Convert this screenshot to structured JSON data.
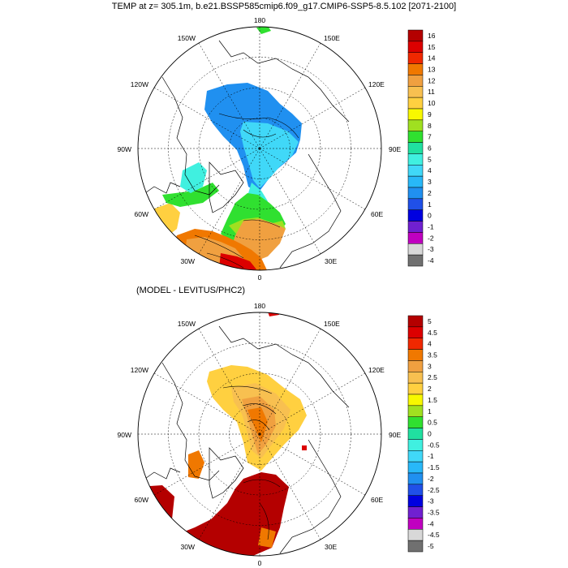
{
  "top_panel": {
    "title": "TEMP at z= 305.1m, b.e21.BSSP585cmip6.f09_g17.CMIP6-SSP5-8.5.102 [2071-2100]",
    "longitude_labels": [
      "180",
      "150E",
      "120E",
      "90E",
      "60E",
      "30E",
      "0",
      "30W",
      "60W",
      "90W",
      "120W",
      "150W"
    ],
    "colorbar_labels": [
      "16",
      "15",
      "14",
      "13",
      "12",
      "11",
      "10",
      "9",
      "8",
      "7",
      "6",
      "5",
      "4",
      "3",
      "2",
      "1",
      "0",
      "-1",
      "-2",
      "-3",
      "-4"
    ],
    "colorbar_colors": [
      "#b40000",
      "#dc0000",
      "#f02800",
      "#f07800",
      "#f0a040",
      "#f8c050",
      "#ffd040",
      "#f8f800",
      "#a0e020",
      "#30e030",
      "#20e0a0",
      "#40f0e0",
      "#40d8f8",
      "#28b8f8",
      "#2090f0",
      "#2050e8",
      "#0000e0",
      "#7020d0",
      "#c000c0",
      "#d8d8d8",
      "#707070"
    ]
  },
  "bottom_panel": {
    "title": "(MODEL - LEVITUS/PHC2)",
    "longitude_labels": [
      "180",
      "150E",
      "120E",
      "90E",
      "60E",
      "30E",
      "0",
      "30W",
      "60W",
      "90W",
      "120W",
      "150W"
    ],
    "colorbar_labels": [
      "5",
      "4.5",
      "4",
      "3.5",
      "3",
      "2.5",
      "2",
      "1.5",
      "1",
      "0.5",
      "0",
      "-0.5",
      "-1",
      "-1.5",
      "-2",
      "-2.5",
      "-3",
      "-3.5",
      "-4",
      "-4.5",
      "-5"
    ],
    "colorbar_colors": [
      "#b40000",
      "#dc0000",
      "#f02800",
      "#f07800",
      "#f0a040",
      "#f8c050",
      "#ffd040",
      "#f8f800",
      "#a0e020",
      "#30e030",
      "#20e0a0",
      "#40f0e0",
      "#40d8f8",
      "#28b8f8",
      "#2090f0",
      "#2050e8",
      "#0000e0",
      "#7020d0",
      "#c000c0",
      "#d8d8d8",
      "#707070"
    ]
  }
}
